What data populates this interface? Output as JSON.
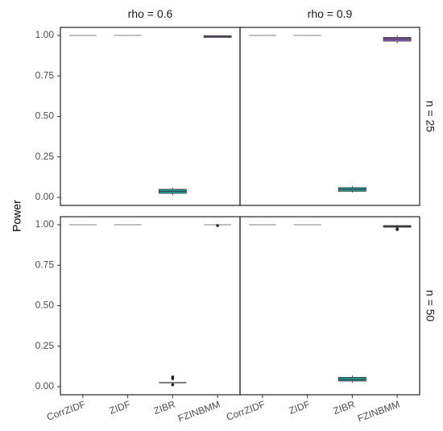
{
  "chart_data": {
    "type": "boxplot",
    "ylabel": "Power",
    "xlabel": "",
    "ylim": [
      0,
      1
    ],
    "y_ticks": [
      "0.00",
      "0.25",
      "0.50",
      "0.75",
      "1.00"
    ],
    "categories": [
      "CorrZIDF",
      "ZIDF",
      "ZIBR",
      "FZINBMM"
    ],
    "col_facets": [
      "rho = 0.6",
      "rho = 0.9"
    ],
    "row_facets": [
      "n = 25",
      "n = 50"
    ],
    "grid": false,
    "legend": "none",
    "colors": {
      "CorrZIDF": "#999999",
      "ZIDF": "#999999",
      "ZIBR": "#21a19a",
      "FZINBMM": "#8e62b8"
    },
    "panels": [
      {
        "col": 0,
        "row": 0,
        "boxes": [
          {
            "category": "CorrZIDF",
            "q1": 1.0,
            "median": 1.0,
            "q3": 1.0,
            "whisker_low": 1.0,
            "whisker_high": 1.0,
            "outliers": []
          },
          {
            "category": "ZIDF",
            "q1": 1.0,
            "median": 1.0,
            "q3": 1.0,
            "whisker_low": 1.0,
            "whisker_high": 1.0,
            "outliers": []
          },
          {
            "category": "ZIBR",
            "q1": 0.025,
            "median": 0.038,
            "q3": 0.05,
            "whisker_low": 0.012,
            "whisker_high": 0.06,
            "outliers": []
          },
          {
            "category": "FZINBMM",
            "q1": 0.993,
            "median": 0.995,
            "q3": 0.998,
            "whisker_low": 0.99,
            "whisker_high": 1.0,
            "outliers": []
          }
        ]
      },
      {
        "col": 1,
        "row": 0,
        "boxes": [
          {
            "category": "CorrZIDF",
            "q1": 1.0,
            "median": 1.0,
            "q3": 1.0,
            "whisker_low": 1.0,
            "whisker_high": 1.0,
            "outliers": []
          },
          {
            "category": "ZIDF",
            "q1": 1.0,
            "median": 1.0,
            "q3": 1.0,
            "whisker_low": 1.0,
            "whisker_high": 1.0,
            "outliers": []
          },
          {
            "category": "ZIBR",
            "q1": 0.038,
            "median": 0.05,
            "q3": 0.06,
            "whisker_low": 0.03,
            "whisker_high": 0.07,
            "outliers": []
          },
          {
            "category": "FZINBMM",
            "q1": 0.965,
            "median": 0.978,
            "q3": 0.988,
            "whisker_low": 0.95,
            "whisker_high": 1.0,
            "outliers": []
          }
        ]
      },
      {
        "col": 0,
        "row": 1,
        "boxes": [
          {
            "category": "CorrZIDF",
            "q1": 1.0,
            "median": 1.0,
            "q3": 1.0,
            "whisker_low": 1.0,
            "whisker_high": 1.0,
            "outliers": []
          },
          {
            "category": "ZIDF",
            "q1": 1.0,
            "median": 1.0,
            "q3": 1.0,
            "whisker_low": 1.0,
            "whisker_high": 1.0,
            "outliers": []
          },
          {
            "category": "ZIBR",
            "q1": 0.025,
            "median": 0.025,
            "q3": 0.025,
            "whisker_low": 0.025,
            "whisker_high": 0.025,
            "outliers": [
              0.05,
              0.06,
              0.012
            ]
          },
          {
            "category": "FZINBMM",
            "q1": 1.0,
            "median": 1.0,
            "q3": 1.0,
            "whisker_low": 1.0,
            "whisker_high": 1.0,
            "outliers": [
              0.995
            ]
          }
        ]
      },
      {
        "col": 1,
        "row": 1,
        "boxes": [
          {
            "category": "CorrZIDF",
            "q1": 1.0,
            "median": 1.0,
            "q3": 1.0,
            "whisker_low": 1.0,
            "whisker_high": 1.0,
            "outliers": []
          },
          {
            "category": "ZIDF",
            "q1": 1.0,
            "median": 1.0,
            "q3": 1.0,
            "whisker_low": 1.0,
            "whisker_high": 1.0,
            "outliers": []
          },
          {
            "category": "ZIBR",
            "q1": 0.035,
            "median": 0.045,
            "q3": 0.058,
            "whisker_low": 0.025,
            "whisker_high": 0.07,
            "outliers": []
          },
          {
            "category": "FZINBMM",
            "q1": 0.985,
            "median": 0.99,
            "q3": 0.995,
            "whisker_low": 0.975,
            "whisker_high": 1.0,
            "outliers": [
              0.97,
              0.975
            ]
          }
        ]
      }
    ]
  }
}
